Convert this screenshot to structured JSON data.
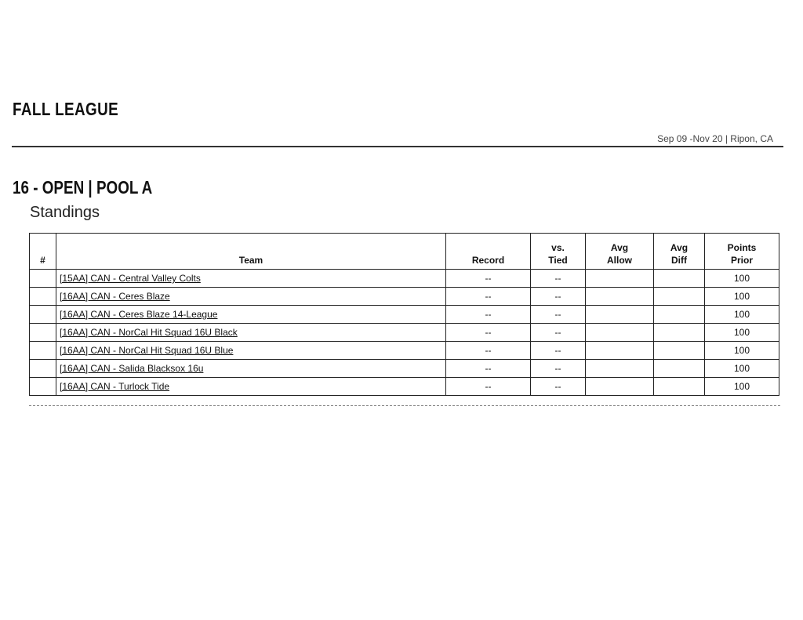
{
  "header": {
    "title": "FALL LEAGUE",
    "dates_location": "Sep 09 -Nov 20 | Ripon, CA"
  },
  "division": {
    "title": "16 - OPEN | POOL A",
    "subtitle": "Standings"
  },
  "table": {
    "columns": [
      "#",
      "Team",
      "Record",
      "vs.\nTied",
      "Avg\nAllow",
      "Avg\nDiff",
      "Points\nPrior"
    ],
    "rows": [
      {
        "rank": "",
        "team": "[15AA] CAN - Central Valley Colts",
        "record": "--",
        "tied": "--",
        "allow": "",
        "diff": "",
        "points": "100"
      },
      {
        "rank": "",
        "team": "[16AA] CAN - Ceres Blaze",
        "record": "--",
        "tied": "--",
        "allow": "",
        "diff": "",
        "points": "100"
      },
      {
        "rank": "",
        "team": "[16AA] CAN - Ceres Blaze 14-League",
        "record": "--",
        "tied": "--",
        "allow": "",
        "diff": "",
        "points": "100"
      },
      {
        "rank": "",
        "team": "[16AA] CAN - NorCal Hit Squad 16U Black",
        "record": "--",
        "tied": "--",
        "allow": "",
        "diff": "",
        "points": "100"
      },
      {
        "rank": "",
        "team": "[16AA] CAN - NorCal Hit Squad 16U Blue",
        "record": "--",
        "tied": "--",
        "allow": "",
        "diff": "",
        "points": "100"
      },
      {
        "rank": "",
        "team": "[16AA] CAN - Salida Blacksox 16u",
        "record": "--",
        "tied": "--",
        "allow": "",
        "diff": "",
        "points": "100"
      },
      {
        "rank": "",
        "team": "[16AA] CAN - Turlock Tide",
        "record": "--",
        "tied": "--",
        "allow": "",
        "diff": "",
        "points": "100"
      }
    ]
  }
}
